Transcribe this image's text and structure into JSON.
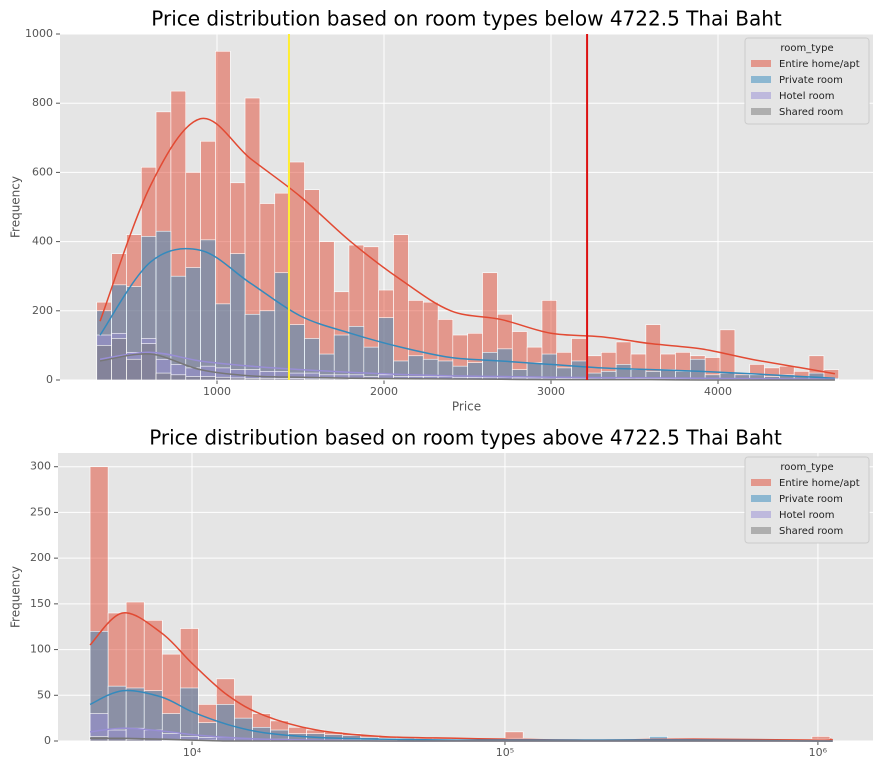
{
  "chart_data": [
    {
      "type": "histogram",
      "title": "Price distribution based on room types below 4722.5 Thai Baht",
      "xlabel": "Price",
      "ylabel": "Frequency",
      "xscale": "linear",
      "xlim": [
        60,
        4928
      ],
      "ylim": [
        0,
        1000
      ],
      "xticks": [
        1000,
        2000,
        3000,
        4000
      ],
      "yticks": [
        0,
        200,
        400,
        600,
        800,
        1000
      ],
      "grid": true,
      "legend": "upper right",
      "legend_title": "room_type",
      "bins": [
        280,
        369,
        458,
        547,
        635,
        724,
        813,
        902,
        991,
        1080,
        1168,
        1257,
        1346,
        1435,
        1524,
        1613,
        1702,
        1790,
        1879,
        1968,
        2057,
        2146,
        2235,
        2324,
        2412,
        2501,
        2590,
        2679,
        2768,
        2857,
        2946,
        3034,
        3123,
        3212,
        3301,
        3390,
        3479,
        3568,
        3656,
        3745,
        3834,
        3923,
        4012,
        4101,
        4190,
        4278,
        4367,
        4456,
        4545,
        4634,
        4722.5
      ],
      "kde_x": [
        300,
        600,
        900,
        1200,
        1500,
        1800,
        2100,
        2400,
        2700,
        3000,
        3300,
        3600,
        3900,
        4200,
        4500,
        4700
      ],
      "vlines": [
        {
          "value": 1431,
          "color": "#ffee33"
        },
        {
          "value": 3216,
          "color": "#dd1111"
        }
      ],
      "series": [
        {
          "name": "Entire home/apt",
          "color": "#E24A33",
          "values": [
            225,
            365,
            420,
            615,
            775,
            835,
            600,
            690,
            950,
            570,
            815,
            510,
            540,
            630,
            550,
            400,
            255,
            390,
            385,
            260,
            420,
            230,
            225,
            175,
            130,
            135,
            310,
            190,
            140,
            95,
            230,
            80,
            120,
            70,
            80,
            110,
            75,
            160,
            75,
            80,
            70,
            65,
            145,
            20,
            45,
            35,
            40,
            25,
            70,
            30
          ],
          "kde": [
            170,
            560,
            755,
            640,
            530,
            400,
            290,
            200,
            175,
            135,
            125,
            105,
            90,
            60,
            35,
            18
          ]
        },
        {
          "name": "Private room",
          "color": "#348ABD",
          "values": [
            200,
            275,
            270,
            415,
            430,
            300,
            325,
            405,
            220,
            365,
            190,
            200,
            310,
            160,
            120,
            75,
            130,
            155,
            95,
            180,
            55,
            70,
            60,
            55,
            40,
            50,
            80,
            90,
            30,
            50,
            75,
            35,
            55,
            20,
            25,
            45,
            30,
            25,
            30,
            25,
            60,
            15,
            20,
            15,
            15,
            10,
            15,
            10,
            20,
            5
          ],
          "kde": [
            130,
            340,
            375,
            280,
            185,
            135,
            95,
            65,
            55,
            45,
            35,
            30,
            25,
            18,
            10,
            5
          ]
        },
        {
          "name": "Hotel room",
          "color": "#988ED5",
          "values": [
            130,
            135,
            80,
            120,
            60,
            45,
            35,
            40,
            35,
            30,
            30,
            25,
            25,
            20,
            20,
            15,
            15,
            15,
            10,
            15,
            10,
            10,
            10,
            10,
            8,
            8,
            8,
            8,
            6,
            6,
            6,
            5,
            5,
            5,
            5,
            4,
            4,
            4,
            4,
            4,
            3,
            3,
            3,
            3,
            2,
            2,
            2,
            2,
            2,
            2
          ],
          "kde": [
            60,
            80,
            55,
            40,
            30,
            22,
            16,
            12,
            10,
            8,
            7,
            6,
            5,
            4,
            3,
            2
          ]
        },
        {
          "name": "Shared room",
          "color": "#777777",
          "values": [
            100,
            120,
            60,
            105,
            20,
            15,
            10,
            10,
            8,
            6,
            5,
            5,
            4,
            4,
            3,
            3,
            3,
            2,
            2,
            2,
            2,
            2,
            1,
            1,
            1,
            1,
            1,
            1,
            1,
            1,
            1,
            1,
            1,
            0,
            0,
            0,
            0,
            0,
            0,
            0,
            0,
            0,
            0,
            0,
            0,
            0,
            0,
            0,
            0,
            0
          ],
          "kde": [
            55,
            75,
            30,
            12,
            8,
            5,
            4,
            3,
            2,
            1,
            1,
            1,
            0,
            0,
            0,
            0
          ]
        }
      ]
    },
    {
      "type": "histogram",
      "title": "Price distribution based on room types above 4722.5 Thai Baht",
      "ylabel": "Frequency",
      "xscale": "log",
      "xlim": [
        3730,
        1500000
      ],
      "ylim": [
        0,
        315
      ],
      "xticks": [
        {
          "value": 10000,
          "label": "10⁴"
        },
        {
          "value": 100000,
          "label": "10⁵"
        },
        {
          "value": 1000000,
          "label": "10⁶"
        }
      ],
      "yticks": [
        0,
        50,
        100,
        150,
        200,
        250,
        300
      ],
      "grid": true,
      "legend": "upper right",
      "legend_title": "room_type",
      "bins": [
        4722.5,
        5393,
        6159,
        7034,
        8033,
        9173,
        10476,
        11964,
        13662,
        15603,
        17818,
        20348,
        23238,
        26537,
        30306,
        34609,
        39523,
        45136,
        51545,
        58864,
        67223,
        76769,
        87670,
        100119,
        114336,
        130571,
        149112,
        170286,
        194466,
        222080,
        253615,
        289629,
        330756,
        377724,
        431360,
        492614,
        562565,
        642449,
        733677,
        837859,
        956835,
        1092706
      ],
      "kde_x": [
        4722.5,
        6000,
        8000,
        10000,
        13000,
        17000,
        25000,
        40000,
        70000,
        100000,
        200000,
        400000,
        1000000,
        1100000
      ],
      "series": [
        {
          "name": "Entire home/apt",
          "color": "#E24A33",
          "values": [
            300,
            140,
            152,
            132,
            95,
            123,
            40,
            68,
            50,
            30,
            22,
            15,
            12,
            10,
            8,
            6,
            5,
            4,
            3,
            3,
            3,
            2,
            2,
            10,
            2,
            1,
            1,
            1,
            1,
            1,
            1,
            3,
            1,
            1,
            0,
            0,
            0,
            0,
            0,
            0,
            5
          ],
          "kde": [
            105,
            140,
            118,
            85,
            50,
            28,
            12,
            5,
            3,
            2,
            1,
            2,
            1,
            2
          ]
        },
        {
          "name": "Private room",
          "color": "#348ABD",
          "values": [
            120,
            60,
            58,
            55,
            30,
            58,
            20,
            40,
            25,
            15,
            12,
            8,
            8,
            7,
            6,
            4,
            3,
            3,
            2,
            2,
            2,
            1,
            1,
            3,
            1,
            1,
            1,
            1,
            1,
            0,
            1,
            5,
            1,
            0,
            0,
            0,
            0,
            0,
            0,
            0,
            2
          ],
          "kde": [
            40,
            55,
            48,
            32,
            18,
            9,
            4,
            2,
            1,
            1,
            1,
            1,
            0,
            0
          ]
        },
        {
          "name": "Hotel room",
          "color": "#988ED5",
          "values": [
            30,
            12,
            14,
            12,
            8,
            5,
            4,
            4,
            3,
            2,
            2,
            1,
            1,
            1,
            1,
            1,
            1,
            0,
            0,
            0,
            0,
            0,
            0,
            0,
            0,
            0,
            0,
            0,
            0,
            0,
            0,
            0,
            0,
            0,
            0,
            0,
            0,
            0,
            0,
            0,
            0
          ],
          "kde": [
            10,
            14,
            11,
            7,
            4,
            2,
            1,
            0,
            0,
            0,
            0,
            0,
            0,
            0
          ]
        },
        {
          "name": "Shared room",
          "color": "#777777",
          "values": [
            5,
            3,
            2,
            2,
            1,
            1,
            1,
            0,
            0,
            0,
            0,
            0,
            0,
            0,
            0,
            0,
            0,
            0,
            0,
            0,
            0,
            0,
            0,
            0,
            0,
            0,
            0,
            0,
            0,
            0,
            0,
            0,
            0,
            0,
            0,
            0,
            0,
            0,
            0,
            0,
            0
          ],
          "kde": [
            3,
            3,
            2,
            1,
            0,
            0,
            0,
            0,
            0,
            0,
            0,
            0,
            0,
            0
          ]
        }
      ]
    }
  ]
}
